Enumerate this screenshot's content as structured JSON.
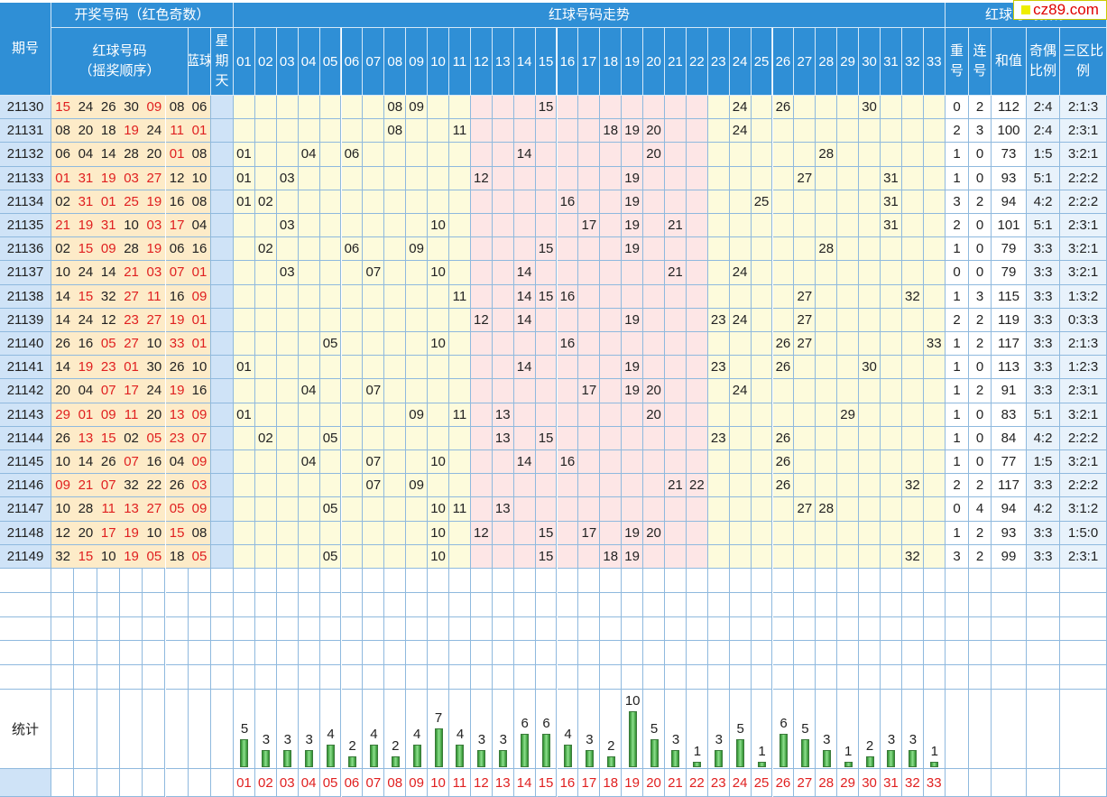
{
  "header": {
    "issue": "期号",
    "open_group": "开奖号码（红色奇数）",
    "red_balls": "红球号码（摇奖顺序）",
    "blue": "蓝球",
    "star": "星期天",
    "trend_group": "红球号码走势",
    "right_group": "红球号码指标",
    "repeat": "重号",
    "consec": "连号",
    "sum": "和值",
    "oddeven": "奇偶比例",
    "zone": "三区比例",
    "stats": "统计"
  },
  "watermark": "cz89.com",
  "columns": [
    "01",
    "02",
    "03",
    "04",
    "05",
    "06",
    "07",
    "08",
    "09",
    "10",
    "11",
    "12",
    "13",
    "14",
    "15",
    "16",
    "17",
    "18",
    "19",
    "20",
    "21",
    "22",
    "23",
    "24",
    "25",
    "26",
    "27",
    "28",
    "29",
    "30",
    "31",
    "32",
    "33"
  ],
  "rows": [
    {
      "issue": "21130",
      "reds": [
        "15",
        "24",
        "26",
        "30",
        "09",
        "08"
      ],
      "blue": "06",
      "repeat": "0",
      "consec": "2",
      "sum": "112",
      "oe": "2:4",
      "zone": "2:1:3"
    },
    {
      "issue": "21131",
      "reds": [
        "08",
        "20",
        "18",
        "19",
        "24",
        "11"
      ],
      "blue": "01",
      "repeat": "2",
      "consec": "3",
      "sum": "100",
      "oe": "2:4",
      "zone": "2:3:1"
    },
    {
      "issue": "21132",
      "reds": [
        "06",
        "04",
        "14",
        "28",
        "20",
        "01"
      ],
      "blue": "08",
      "repeat": "1",
      "consec": "0",
      "sum": "73",
      "oe": "1:5",
      "zone": "3:2:1"
    },
    {
      "issue": "21133",
      "reds": [
        "01",
        "31",
        "19",
        "03",
        "27",
        "12"
      ],
      "blue": "10",
      "repeat": "1",
      "consec": "0",
      "sum": "93",
      "oe": "5:1",
      "zone": "2:2:2"
    },
    {
      "issue": "21134",
      "reds": [
        "02",
        "31",
        "01",
        "25",
        "19",
        "16"
      ],
      "blue": "08",
      "repeat": "3",
      "consec": "2",
      "sum": "94",
      "oe": "4:2",
      "zone": "2:2:2"
    },
    {
      "issue": "21135",
      "reds": [
        "21",
        "19",
        "31",
        "10",
        "03",
        "17"
      ],
      "blue": "04",
      "repeat": "2",
      "consec": "0",
      "sum": "101",
      "oe": "5:1",
      "zone": "2:3:1"
    },
    {
      "issue": "21136",
      "reds": [
        "02",
        "15",
        "09",
        "28",
        "19",
        "06"
      ],
      "blue": "16",
      "repeat": "1",
      "consec": "0",
      "sum": "79",
      "oe": "3:3",
      "zone": "3:2:1"
    },
    {
      "issue": "21137",
      "reds": [
        "10",
        "24",
        "14",
        "21",
        "03",
        "07"
      ],
      "blue": "01",
      "repeat": "0",
      "consec": "0",
      "sum": "79",
      "oe": "3:3",
      "zone": "3:2:1"
    },
    {
      "issue": "21138",
      "reds": [
        "14",
        "15",
        "32",
        "27",
        "11",
        "16"
      ],
      "blue": "09",
      "repeat": "1",
      "consec": "3",
      "sum": "115",
      "oe": "3:3",
      "zone": "1:3:2"
    },
    {
      "issue": "21139",
      "reds": [
        "14",
        "24",
        "12",
        "23",
        "27",
        "19"
      ],
      "blue": "01",
      "repeat": "2",
      "consec": "2",
      "sum": "119",
      "oe": "3:3",
      "zone": "0:3:3"
    },
    {
      "issue": "21140",
      "reds": [
        "26",
        "16",
        "05",
        "27",
        "10",
        "33"
      ],
      "blue": "01",
      "repeat": "1",
      "consec": "2",
      "sum": "117",
      "oe": "3:3",
      "zone": "2:1:3"
    },
    {
      "issue": "21141",
      "reds": [
        "14",
        "19",
        "23",
        "01",
        "30",
        "26"
      ],
      "blue": "10",
      "repeat": "1",
      "consec": "0",
      "sum": "113",
      "oe": "3:3",
      "zone": "1:2:3"
    },
    {
      "issue": "21142",
      "reds": [
        "20",
        "04",
        "07",
        "17",
        "24",
        "19"
      ],
      "blue": "16",
      "repeat": "1",
      "consec": "2",
      "sum": "91",
      "oe": "3:3",
      "zone": "2:3:1"
    },
    {
      "issue": "21143",
      "reds": [
        "29",
        "01",
        "09",
        "11",
        "20",
        "13"
      ],
      "blue": "09",
      "repeat": "1",
      "consec": "0",
      "sum": "83",
      "oe": "5:1",
      "zone": "3:2:1"
    },
    {
      "issue": "21144",
      "reds": [
        "26",
        "13",
        "15",
        "02",
        "05",
        "23"
      ],
      "blue": "07",
      "repeat": "1",
      "consec": "0",
      "sum": "84",
      "oe": "4:2",
      "zone": "2:2:2"
    },
    {
      "issue": "21145",
      "reds": [
        "10",
        "14",
        "26",
        "07",
        "16",
        "04"
      ],
      "blue": "09",
      "repeat": "1",
      "consec": "0",
      "sum": "77",
      "oe": "1:5",
      "zone": "3:2:1"
    },
    {
      "issue": "21146",
      "reds": [
        "09",
        "21",
        "07",
        "32",
        "22",
        "26"
      ],
      "blue": "03",
      "repeat": "2",
      "consec": "2",
      "sum": "117",
      "oe": "3:3",
      "zone": "2:2:2"
    },
    {
      "issue": "21147",
      "reds": [
        "10",
        "28",
        "11",
        "13",
        "27",
        "05"
      ],
      "blue": "09",
      "repeat": "0",
      "consec": "4",
      "sum": "94",
      "oe": "4:2",
      "zone": "3:1:2"
    },
    {
      "issue": "21148",
      "reds": [
        "12",
        "20",
        "17",
        "19",
        "10",
        "15"
      ],
      "blue": "08",
      "repeat": "1",
      "consec": "2",
      "sum": "93",
      "oe": "3:3",
      "zone": "1:5:0"
    },
    {
      "issue": "21149",
      "reds": [
        "32",
        "15",
        "10",
        "19",
        "05",
        "18"
      ],
      "blue": "05",
      "repeat": "3",
      "consec": "2",
      "sum": "99",
      "oe": "3:3",
      "zone": "2:3:1"
    }
  ],
  "counts": [
    5,
    3,
    3,
    3,
    4,
    2,
    4,
    2,
    4,
    7,
    4,
    3,
    3,
    6,
    6,
    4,
    3,
    2,
    10,
    5,
    3,
    1,
    3,
    5,
    1,
    6,
    5,
    3,
    1,
    2,
    3,
    3,
    1
  ],
  "colors": {
    "header": "#2f8fd6",
    "issue_bg": "#cfe3f7",
    "reds_bg": "#fdebc8",
    "odd": "#e02020",
    "zone_yellow": "#fdfbdc",
    "zone_pink": "#fde6e6"
  }
}
